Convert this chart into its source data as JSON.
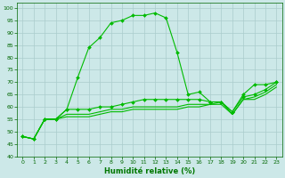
{
  "title": "",
  "xlabel": "Humidité relative (%)",
  "ylabel": "",
  "bg_color": "#cce8e8",
  "grid_color": "#aacccc",
  "line_color": "#00bb00",
  "xlim": [
    -0.5,
    23.5
  ],
  "ylim": [
    40,
    102
  ],
  "yticks": [
    40,
    45,
    50,
    55,
    60,
    65,
    70,
    75,
    80,
    85,
    90,
    95,
    100
  ],
  "xticks": [
    0,
    1,
    2,
    3,
    4,
    5,
    6,
    7,
    8,
    9,
    10,
    11,
    12,
    13,
    14,
    15,
    16,
    17,
    18,
    19,
    20,
    21,
    22,
    23
  ],
  "series": [
    {
      "x": [
        0,
        1,
        2,
        3,
        4,
        5,
        6,
        7,
        8,
        9,
        10,
        11,
        12,
        13,
        14,
        15,
        16,
        17,
        18,
        19,
        20,
        21,
        22,
        23
      ],
      "y": [
        48,
        47,
        55,
        55,
        59,
        72,
        84,
        88,
        94,
        95,
        97,
        97,
        98,
        96,
        82,
        65,
        66,
        62,
        62,
        58,
        65,
        69,
        69,
        70
      ],
      "marker": "D",
      "markersize": 2.0,
      "linewidth": 0.8,
      "linestyle": "-"
    },
    {
      "x": [
        0,
        1,
        2,
        3,
        4,
        5,
        6,
        7,
        8,
        9,
        10,
        11,
        12,
        13,
        14,
        15,
        16,
        17,
        18,
        19,
        20,
        21,
        22,
        23
      ],
      "y": [
        48,
        47,
        55,
        55,
        59,
        59,
        59,
        60,
        60,
        61,
        62,
        63,
        63,
        63,
        63,
        63,
        63,
        62,
        62,
        58,
        64,
        65,
        67,
        70
      ],
      "marker": "D",
      "markersize": 2.0,
      "linewidth": 0.8,
      "linestyle": "-"
    },
    {
      "x": [
        0,
        1,
        2,
        3,
        4,
        5,
        6,
        7,
        8,
        9,
        10,
        11,
        12,
        13,
        14,
        15,
        16,
        17,
        18,
        19,
        20,
        21,
        22,
        23
      ],
      "y": [
        48,
        47,
        55,
        55,
        57,
        57,
        57,
        58,
        59,
        59,
        60,
        60,
        60,
        60,
        60,
        61,
        61,
        61,
        62,
        57,
        63,
        64,
        66,
        69
      ],
      "marker": null,
      "markersize": 0,
      "linewidth": 0.8,
      "linestyle": "-"
    },
    {
      "x": [
        0,
        1,
        2,
        3,
        4,
        5,
        6,
        7,
        8,
        9,
        10,
        11,
        12,
        13,
        14,
        15,
        16,
        17,
        18,
        19,
        20,
        21,
        22,
        23
      ],
      "y": [
        48,
        47,
        55,
        55,
        56,
        56,
        56,
        57,
        58,
        58,
        59,
        59,
        59,
        59,
        59,
        60,
        60,
        61,
        61,
        57,
        63,
        63,
        65,
        68
      ],
      "marker": null,
      "markersize": 0,
      "linewidth": 0.8,
      "linestyle": "-"
    }
  ],
  "xlabel_fontsize": 6,
  "xlabel_color": "#007700",
  "tick_labelsize": 4.5,
  "tick_color": "#006600"
}
